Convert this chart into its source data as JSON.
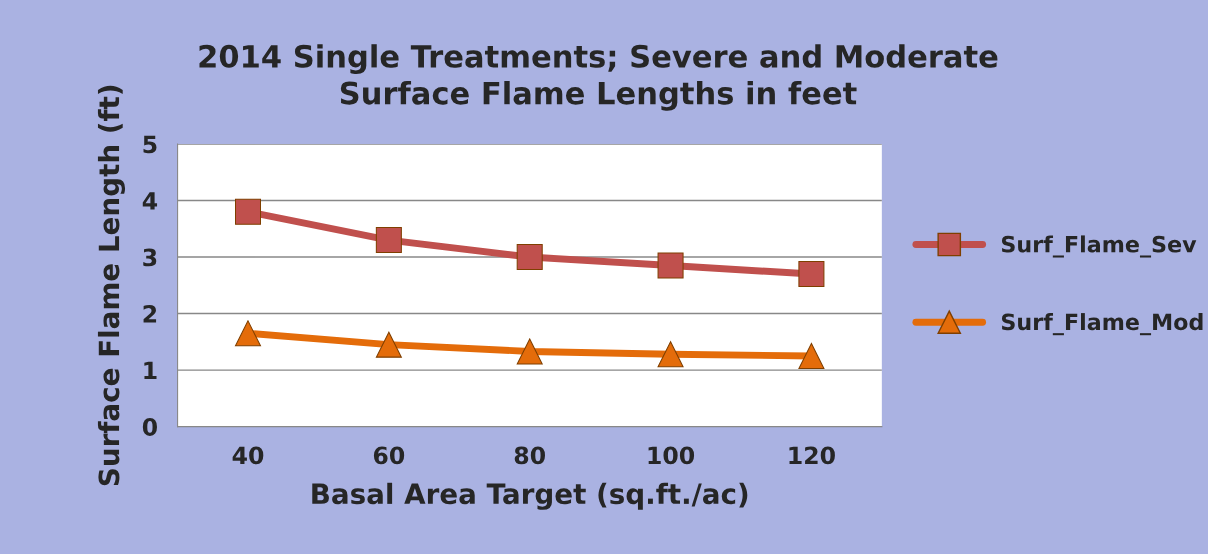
{
  "chart_data": {
    "type": "line",
    "title": "2014 Single Treatments; Severe and Moderate\nSurface Flame Lengths in feet",
    "xlabel": "Basal Area Target (sq.ft./ac)",
    "ylabel": "Surface Flame Length (ft)",
    "categories": [
      "40",
      "60",
      "80",
      "100",
      "120"
    ],
    "series": [
      {
        "name": "Surf_Flame_Sev",
        "color": "#c0504d",
        "marker": "square",
        "values": [
          3.8,
          3.3,
          3.0,
          2.85,
          2.7
        ]
      },
      {
        "name": "Surf_Flame_Mod",
        "color": "#e46c0a",
        "marker": "triangle",
        "values": [
          1.65,
          1.45,
          1.33,
          1.28,
          1.25
        ]
      }
    ],
    "ylim": [
      0,
      5
    ],
    "yticks": [
      0,
      1,
      2,
      3,
      4,
      5
    ],
    "grid": "y",
    "legend": "right"
  }
}
